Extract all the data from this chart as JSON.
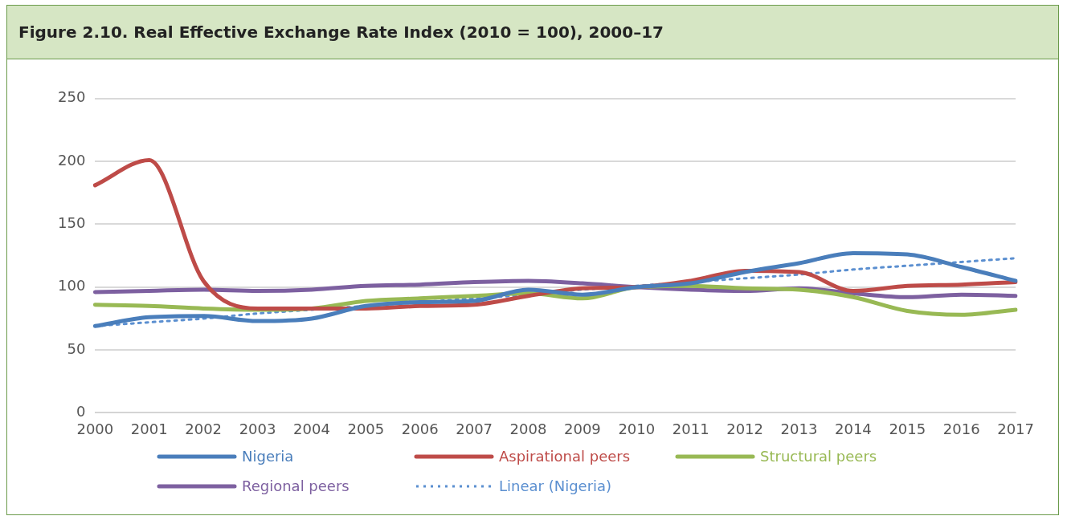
{
  "chart_data": {
    "type": "line",
    "title": "Figure 2.10.  Real Effective Exchange Rate Index (2010 = 100), 2000–17",
    "categories": [
      "2000",
      "2001",
      "2002",
      "2003",
      "2004",
      "2005",
      "2006",
      "2007",
      "2008",
      "2009",
      "2010",
      "2011",
      "2012",
      "2013",
      "2014",
      "2015",
      "2016",
      "2017"
    ],
    "series": [
      {
        "name": "Nigeria",
        "color": "#4a7ebb",
        "values": [
          69,
          76,
          77,
          73,
          75,
          85,
          88,
          89,
          98,
          94,
          100,
          103,
          112,
          119,
          127,
          126,
          116,
          105
        ]
      },
      {
        "name": "Aspirational peers",
        "color": "#be4b48",
        "values": [
          181,
          201,
          105,
          83,
          83,
          83,
          85,
          86,
          93,
          99,
          100,
          105,
          113,
          112,
          97,
          101,
          102,
          104
        ]
      },
      {
        "name": "Structural peers",
        "color": "#98b954",
        "values": [
          86,
          85,
          83,
          82,
          83,
          89,
          91,
          93,
          95,
          91,
          100,
          101,
          99,
          98,
          92,
          81,
          78,
          82
        ]
      },
      {
        "name": "Regional peers",
        "color": "#7d60a0",
        "values": [
          96,
          97,
          98,
          97,
          98,
          101,
          102,
          104,
          105,
          103,
          100,
          98,
          97,
          99,
          95,
          92,
          94,
          93
        ]
      },
      {
        "name": "Linear (Nigeria)",
        "color": "#5b8fd0",
        "line_style": "dotted",
        "values": [
          69,
          72,
          75,
          79,
          82,
          85,
          88,
          91,
          94,
          98,
          101,
          104,
          107,
          110,
          114,
          117,
          120,
          123
        ]
      }
    ],
    "ylim": [
      0,
      250
    ],
    "yticks": [
      0,
      50,
      100,
      150,
      200,
      250
    ],
    "grid": "y",
    "legend": "bottom",
    "marker": "none",
    "line_style": "solid"
  }
}
